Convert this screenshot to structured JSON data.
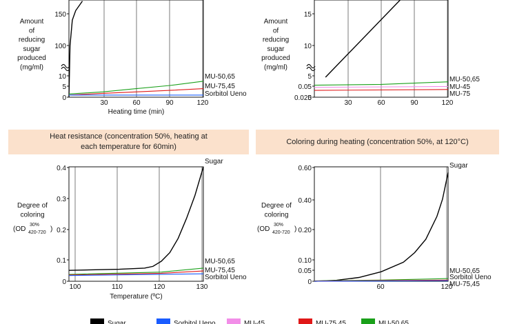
{
  "colors": {
    "Sugar": "#000000",
    "Sorbitol Ueno": "#1a5cff",
    "MU-45": "#f28ee8",
    "MU-75,45": "#e01818",
    "MU-50,65": "#1aa01a",
    "MU-75": "#e01818",
    "header_bg": "#fbe1cc"
  },
  "legend": {
    "items": [
      {
        "label": "Sugar"
      },
      {
        "label": "Sorbitol Ueno"
      },
      {
        "label": "MU-45"
      },
      {
        "label": "MU-75,45"
      },
      {
        "label": "MU-50,65"
      }
    ]
  },
  "headers": {
    "heat": "Heat resistance (concentration 50%, heating at each temperature for 60min)",
    "coloring": "Coloring during heating (concentration 50%, at 120°C)"
  },
  "chart_data": [
    {
      "type": "line",
      "ylabel_lines": [
        "Amount",
        "of",
        "reducing",
        "sugar",
        "produced",
        "(mg/ml)"
      ],
      "xlabel": "Heating time (min)",
      "x_ticks": [
        "30",
        "60",
        "90",
        "120"
      ],
      "y_ticks": [
        "150",
        "100",
        "10",
        "5",
        "0"
      ],
      "axis_break": true,
      "xlim": [
        0,
        120
      ],
      "series": [
        {
          "name": "Sugar",
          "x": [
            0,
            1,
            3,
            6,
            12
          ],
          "y": [
            0,
            100,
            140,
            155,
            170
          ]
        },
        {
          "name": "MU-50,65",
          "x": [
            0,
            30,
            60,
            90,
            120
          ],
          "y": [
            1.5,
            2.5,
            4,
            5.5,
            7.5
          ]
        },
        {
          "name": "MU-75,45",
          "x": [
            0,
            30,
            60,
            90,
            120
          ],
          "y": [
            1,
            1.8,
            2.5,
            3.2,
            4
          ]
        },
        {
          "name": "Sorbitol Ueno",
          "x": [
            0,
            120
          ],
          "y": [
            1,
            1
          ]
        }
      ],
      "end_labels": [
        "MU-50,65",
        "MU-75,45",
        "Sorbitol Ueno"
      ]
    },
    {
      "type": "line",
      "ylabel_lines": [
        "Amount",
        "of",
        "reducing",
        "sugar",
        "produced",
        "(mg/ml)"
      ],
      "xlabel": "",
      "x_ticks": [
        "30",
        "60",
        "90",
        "120"
      ],
      "y_ticks": [
        "15",
        "10",
        "5",
        "0.05",
        "0.025",
        "0"
      ],
      "axis_break": true,
      "xlim": [
        0,
        120
      ],
      "series": [
        {
          "name": "Sugar",
          "x": [
            10,
            120
          ],
          "y": [
            5,
            25
          ]
        },
        {
          "name": "MU-50,65",
          "x": [
            0,
            60,
            120
          ],
          "y": [
            0.028,
            0.03,
            0.036
          ]
        },
        {
          "name": "MU-45",
          "x": [
            0,
            120
          ],
          "y": [
            0.023,
            0.025
          ]
        },
        {
          "name": "MU-75",
          "x": [
            0,
            120
          ],
          "y": [
            0.016,
            0.018
          ]
        }
      ],
      "end_labels": [
        "MU-50,65",
        "MU-45",
        "MU-75"
      ]
    },
    {
      "type": "line",
      "ylabel_lines": [
        "Degree of",
        "coloring"
      ],
      "ylabel_od": "(OD",
      "ylabel_sup": "30%",
      "ylabel_sub": "420-720",
      "ylabel_close": ")",
      "xlabel": "Temperature (ºC)",
      "x_ticks": [
        "100",
        "110",
        "120",
        "130"
      ],
      "y_ticks": [
        "0.4",
        "0.3",
        "0.2",
        "0.1",
        "0"
      ],
      "xlim": [
        98,
        130
      ],
      "ylim": [
        0,
        0.4
      ],
      "series": [
        {
          "name": "Sugar",
          "x": [
            98,
            110,
            116,
            118,
            120,
            122,
            124,
            126,
            128,
            130
          ],
          "y": [
            0.038,
            0.042,
            0.046,
            0.052,
            0.07,
            0.1,
            0.15,
            0.22,
            0.3,
            0.4
          ]
        },
        {
          "name": "MU-50,65",
          "x": [
            98,
            120,
            130
          ],
          "y": [
            0.024,
            0.032,
            0.046
          ]
        },
        {
          "name": "MU-75,45",
          "x": [
            98,
            120,
            130
          ],
          "y": [
            0.022,
            0.028,
            0.036
          ]
        },
        {
          "name": "Sorbitol Ueno",
          "x": [
            98,
            130
          ],
          "y": [
            0.02,
            0.026
          ]
        }
      ],
      "end_labels": [
        "Sugar",
        "MU-50,65",
        "MU-75,45",
        "Sorbitol Ueno"
      ]
    },
    {
      "type": "line",
      "ylabel_lines": [
        "Degree of",
        "coloring"
      ],
      "ylabel_od": "(OD",
      "ylabel_sup": "30%",
      "ylabel_sub": "420-720",
      "ylabel_close": ")",
      "xlabel": "",
      "x_ticks": [
        "60",
        "120"
      ],
      "y_ticks": [
        "0.60",
        "0.40",
        "0.20",
        "0.10",
        "0.05",
        "0"
      ],
      "xlim": [
        0,
        120
      ],
      "ylim": [
        0,
        0.6
      ],
      "series": [
        {
          "name": "Sugar",
          "x": [
            0,
            20,
            40,
            60,
            80,
            90,
            100,
            110,
            115,
            120
          ],
          "y": [
            0,
            0.005,
            0.02,
            0.05,
            0.1,
            0.15,
            0.22,
            0.34,
            0.43,
            0.57
          ]
        },
        {
          "name": "MU-50,65",
          "x": [
            0,
            60,
            120
          ],
          "y": [
            0.002,
            0.006,
            0.014
          ]
        },
        {
          "name": "MU-75,45",
          "x": [
            0,
            120
          ],
          "y": [
            0.001,
            0.006
          ]
        },
        {
          "name": "Sorbitol Ueno",
          "x": [
            0,
            120
          ],
          "y": [
            0.0,
            0.003
          ]
        }
      ],
      "end_labels": [
        "Sugar",
        "MU-50,65",
        "Sorbitol Ueno",
        "MU-75,45"
      ]
    }
  ]
}
